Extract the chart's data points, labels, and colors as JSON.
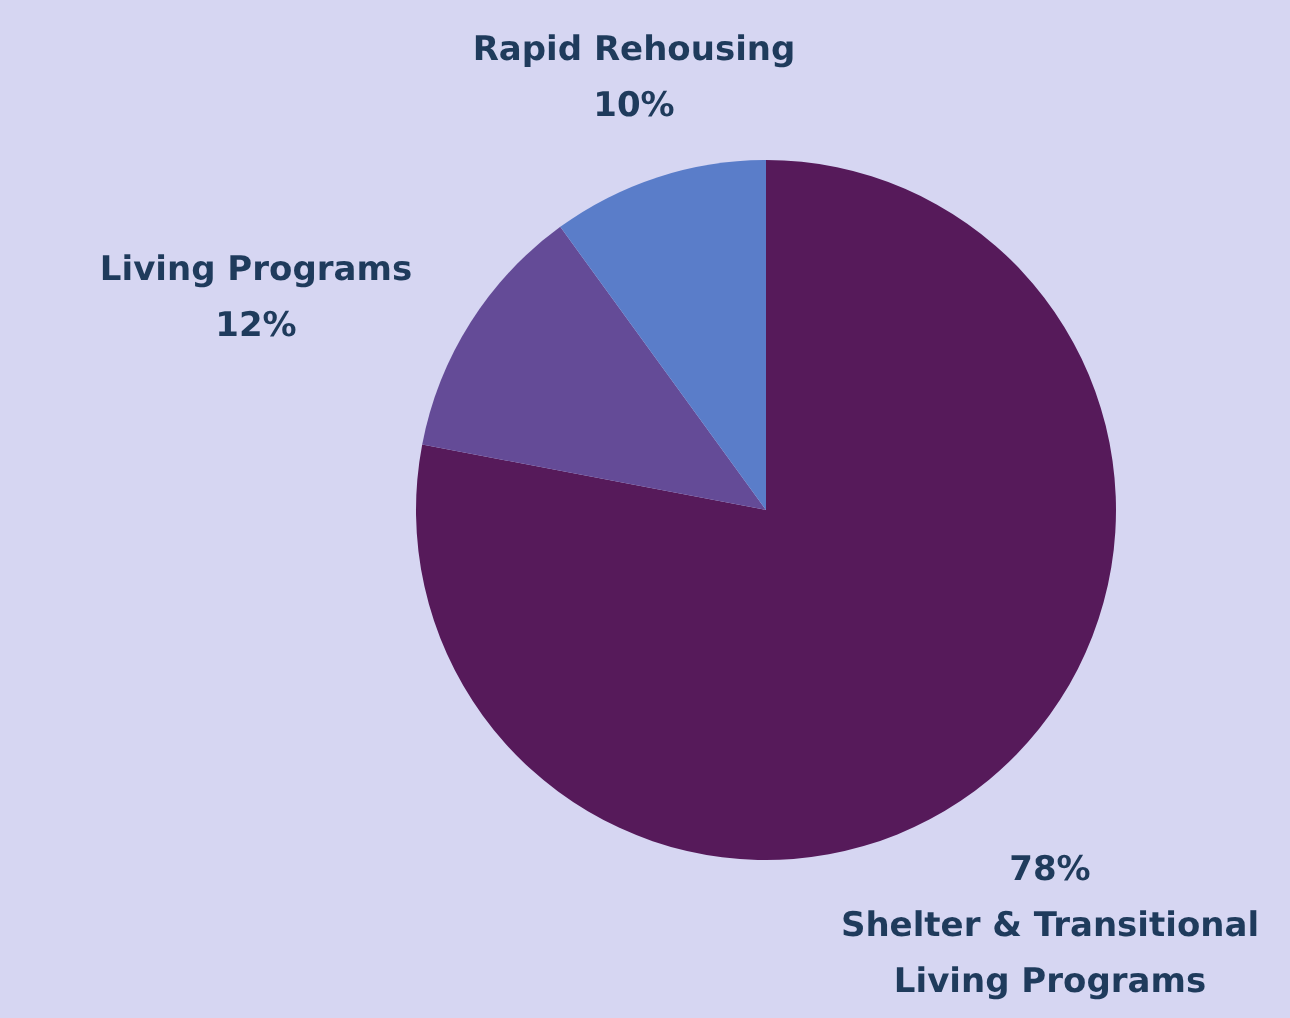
{
  "chart_data": {
    "type": "pie",
    "categories": [
      "Shelter & Transitional Living Programs",
      "Living Programs",
      "Rapid Rehousing"
    ],
    "values": [
      78,
      12,
      10
    ],
    "colors": [
      "#561a5a",
      "#644b97",
      "#5a7dc9"
    ],
    "value_labels": [
      "78%",
      "12%",
      "10%"
    ]
  }
}
